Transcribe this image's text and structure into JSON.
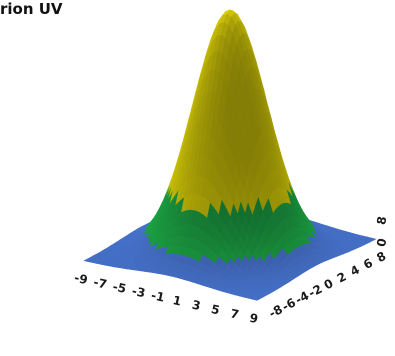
{
  "chart_data": {
    "type": "surface",
    "title": "rion UV",
    "x_ticks": [
      "-9",
      "-7",
      "-5",
      "-3",
      "-1",
      "1",
      "3",
      "5",
      "7",
      "9"
    ],
    "y_ticks": [
      "-8",
      "-6",
      "-4",
      "-2",
      "0",
      "2",
      "4",
      "6",
      "8"
    ],
    "z_ticks": [
      "0",
      "8"
    ],
    "surface": {
      "shape": "gaussian-peak",
      "peak_x": 0,
      "peak_y": 0,
      "peak_height": 1,
      "spread": 3.2
    },
    "colormap": [
      {
        "name": "low",
        "color": "#4a78d6",
        "from": 0.0,
        "to": 0.08
      },
      {
        "name": "mid",
        "color": "#1fb04a",
        "from": 0.08,
        "to": 0.25
      },
      {
        "name": "high",
        "color": "#f0e40a",
        "from": 0.25,
        "to": 1.0
      }
    ],
    "grid": false
  }
}
